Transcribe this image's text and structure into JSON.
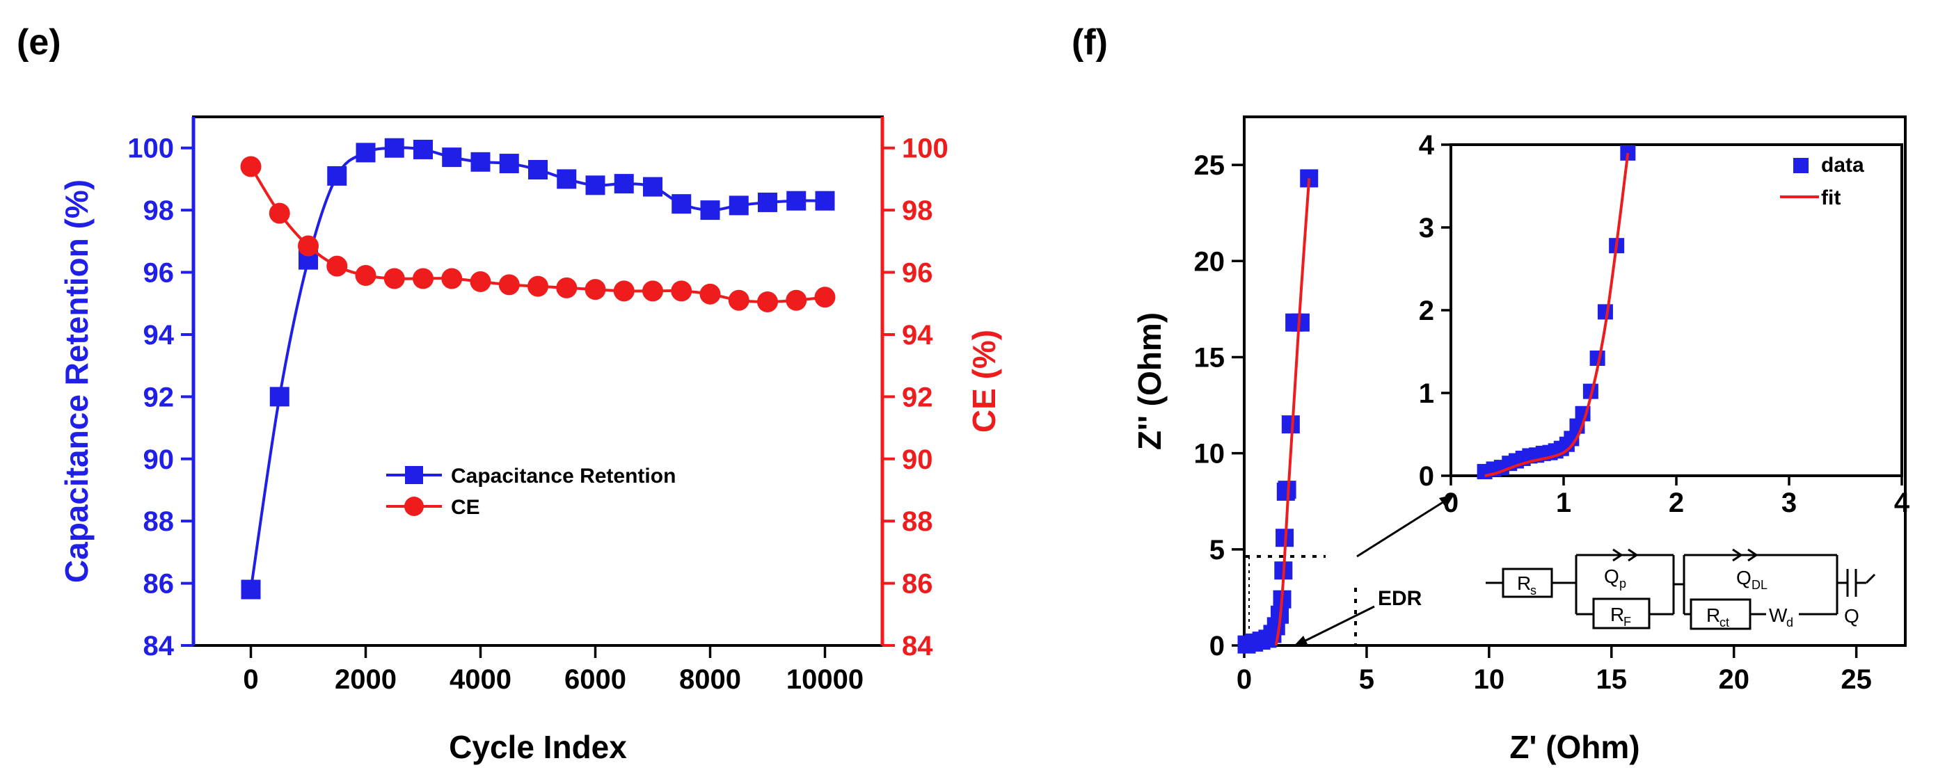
{
  "colors": {
    "blue": "#1f1fe8",
    "red": "#ee1c1c",
    "black": "#000000"
  },
  "chart_data": [
    {
      "panel_label": "(e)",
      "type": "line",
      "xlabel": "Cycle Index",
      "ylabel_left": "Capacitance  Retention (%)",
      "ylabel_right": "CE (%)",
      "xlim": [
        -1000,
        11000
      ],
      "ylim_left": [
        84,
        101
      ],
      "ylim_right": [
        84,
        101
      ],
      "x_ticks": [
        "0",
        "2000",
        "4000",
        "6000",
        "8000",
        "10000"
      ],
      "y_ticks_left": [
        "84",
        "86",
        "88",
        "90",
        "92",
        "94",
        "96",
        "98",
        "100"
      ],
      "y_ticks_right": [
        "84",
        "86",
        "88",
        "90",
        "92",
        "94",
        "96",
        "98",
        "100"
      ],
      "legend_position": "center",
      "series": [
        {
          "name": "Capacitance  Retention",
          "axis": "left",
          "color": "#1f1fe8",
          "marker": "square",
          "x": [
            0,
            500,
            1000,
            1500,
            2000,
            2500,
            3000,
            3500,
            4000,
            4500,
            5000,
            5500,
            6000,
            6500,
            7000,
            7500,
            8000,
            8500,
            9000,
            9500,
            10000
          ],
          "y": [
            85.8,
            92.0,
            96.4,
            99.1,
            99.85,
            100.0,
            99.95,
            99.7,
            99.55,
            99.5,
            99.3,
            99.0,
            98.8,
            98.85,
            98.75,
            98.2,
            98.0,
            98.15,
            98.25,
            98.3,
            98.3
          ]
        },
        {
          "name": "CE",
          "axis": "right",
          "color": "#ee1c1c",
          "marker": "circle",
          "x": [
            0,
            500,
            1000,
            1500,
            2000,
            2500,
            3000,
            3500,
            4000,
            4500,
            5000,
            5500,
            6000,
            6500,
            7000,
            7500,
            8000,
            8500,
            9000,
            9500,
            10000
          ],
          "y": [
            99.4,
            97.9,
            96.85,
            96.2,
            95.9,
            95.8,
            95.8,
            95.8,
            95.7,
            95.6,
            95.55,
            95.5,
            95.45,
            95.4,
            95.4,
            95.4,
            95.3,
            95.1,
            95.05,
            95.1,
            95.2
          ]
        }
      ]
    },
    {
      "panel_label": "(f)",
      "type": "scatter",
      "xlabel": "Z' (Ohm)",
      "ylabel": "Z'' (Ohm)",
      "xlim": [
        0,
        27
      ],
      "ylim": [
        0,
        27.5
      ],
      "x_ticks": [
        "0",
        "5",
        "10",
        "15",
        "20",
        "25"
      ],
      "y_ticks": [
        "0",
        "5",
        "10",
        "15",
        "20",
        "25"
      ],
      "series": [
        {
          "name": "data",
          "color": "#1f1fe8",
          "marker": "square",
          "x": [
            0.1,
            0.4,
            0.7,
            0.95,
            1.15,
            1.3,
            1.45,
            1.55,
            1.6,
            1.65,
            1.7,
            1.75,
            1.9,
            2.05,
            2.3,
            2.65
          ],
          "y": [
            0.05,
            0.15,
            0.25,
            0.35,
            0.6,
            1.0,
            1.6,
            2.4,
            3.9,
            5.6,
            8.0,
            8.1,
            11.5,
            16.8,
            16.8,
            24.3
          ]
        },
        {
          "name": "fit",
          "color": "#ee1c1c",
          "marker": "line",
          "x": [
            1.3,
            1.45,
            1.6,
            1.8,
            2.0,
            2.3,
            2.65
          ],
          "y": [
            0.0,
            1.2,
            3.5,
            8.0,
            12.0,
            18.0,
            24.3
          ]
        }
      ],
      "annotation": "EDR"
    },
    {
      "panel_label": "(f) inset",
      "type": "scatter",
      "xlim": [
        0,
        4
      ],
      "ylim": [
        0,
        4
      ],
      "x_ticks": [
        "0",
        "1",
        "2",
        "3",
        "4"
      ],
      "y_ticks": [
        "0",
        "1",
        "2",
        "3",
        "4"
      ],
      "legend_position": "top-right",
      "series": [
        {
          "name": "data",
          "color": "#1f1fe8",
          "marker": "square",
          "x": [
            0.3,
            0.38,
            0.45,
            0.52,
            0.58,
            0.64,
            0.7,
            0.76,
            0.82,
            0.88,
            0.93,
            0.98,
            1.03,
            1.07,
            1.12,
            1.17,
            1.24,
            1.3,
            1.37,
            1.47,
            1.57
          ],
          "y": [
            0.05,
            0.08,
            0.1,
            0.15,
            0.18,
            0.21,
            0.24,
            0.25,
            0.27,
            0.28,
            0.3,
            0.33,
            0.38,
            0.45,
            0.6,
            0.75,
            1.02,
            1.42,
            1.98,
            2.78,
            3.9
          ]
        },
        {
          "name": "fit",
          "color": "#ee1c1c",
          "marker": "line",
          "x": [
            0.3,
            0.4,
            0.5,
            0.6,
            0.7,
            0.8,
            0.9,
            1.0,
            1.08,
            1.15,
            1.22,
            1.3,
            1.38,
            1.47,
            1.57
          ],
          "y": [
            0.0,
            0.03,
            0.08,
            0.13,
            0.17,
            0.2,
            0.23,
            0.28,
            0.38,
            0.55,
            0.85,
            1.3,
            1.9,
            2.8,
            3.9
          ]
        }
      ],
      "circuit_labels": {
        "rs": "R",
        "rs_sub": "s",
        "qp": "Q",
        "qp_sub": "p",
        "rf": "R",
        "rf_sub": "F",
        "qdl": "Q",
        "qdl_sub": "DL",
        "rct": "R",
        "rct_sub": "ct",
        "wd": "W",
        "wd_sub": "d",
        "q": "Q"
      }
    }
  ]
}
